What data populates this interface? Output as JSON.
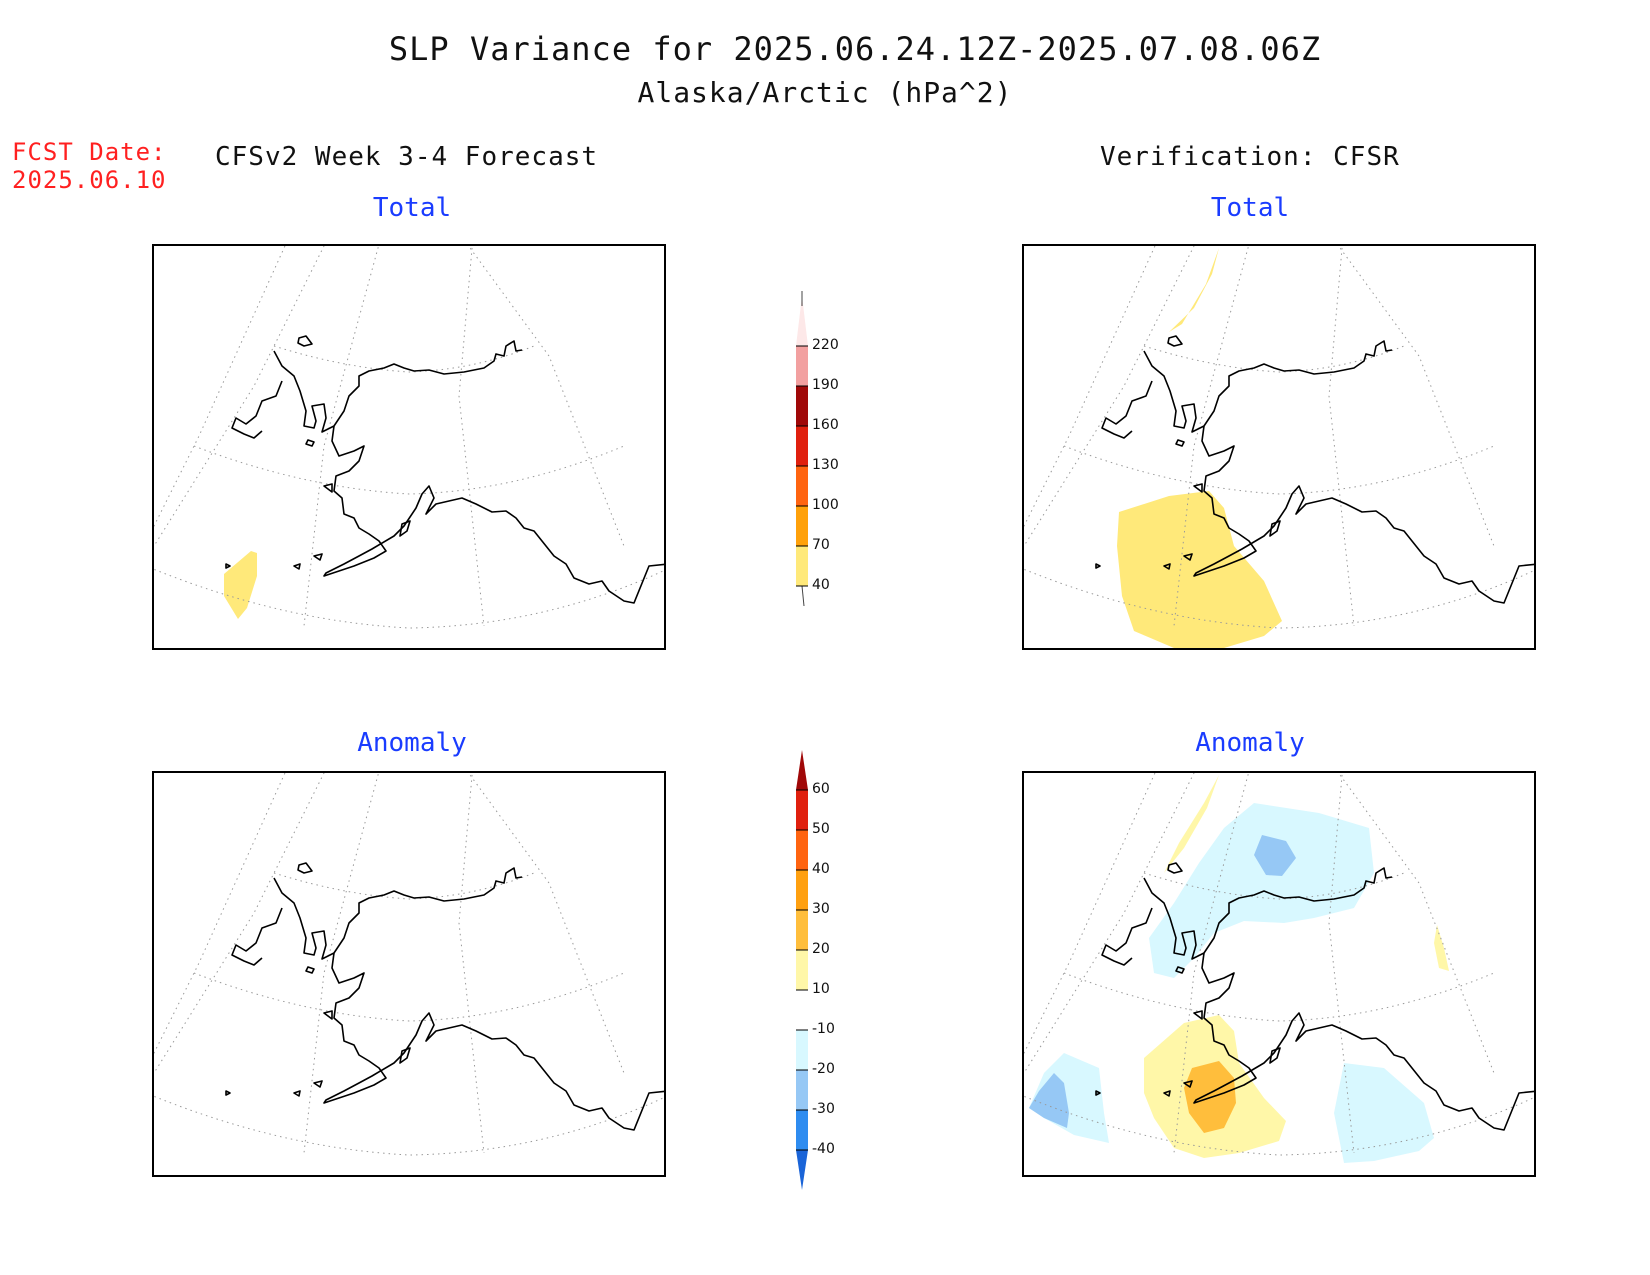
{
  "title": {
    "line1": "SLP Variance for 2025.06.24.12Z-2025.07.08.06Z",
    "line2": "Alaska/Arctic (hPa^2)"
  },
  "forecast_date": {
    "label": "FCST Date:",
    "value": "2025.06.10"
  },
  "columns": {
    "left_header": "CFSv2 Week 3-4 Forecast",
    "right_header": "Verification: CFSR"
  },
  "panels": {
    "top_left_title": "Total",
    "top_right_title": "Total",
    "bottom_left_title": "Anomaly",
    "bottom_right_title": "Anomaly"
  },
  "colorbars": {
    "total": {
      "labels": [
        "40",
        "70",
        "100",
        "130",
        "160",
        "190",
        "220"
      ],
      "colors": [
        "#ffe97a",
        "#ffa10a",
        "#ff6410",
        "#e0200e",
        "#a00808",
        "#f2a0a0",
        "#fde8e8"
      ]
    },
    "anomaly": {
      "labels": [
        "-40",
        "-30",
        "-20",
        "-10",
        "10",
        "20",
        "30",
        "40",
        "50",
        "60"
      ],
      "colors": [
        "#1a64d8",
        "#2e8cf0",
        "#96c8f5",
        "#d8f8ff",
        "#ffffff",
        "#fff7a8",
        "#ffbe3c",
        "#ffa010",
        "#ff6410",
        "#e0200e",
        "#a00808"
      ]
    }
  }
}
